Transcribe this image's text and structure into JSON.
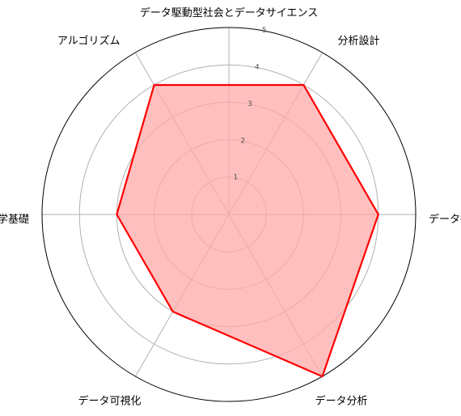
{
  "chart_data": {
    "type": "radar",
    "title": "データ駆動型社会とデータサイエンス",
    "categories": [
      "分析設計",
      "データ観察",
      "データ分析",
      "データ可視化",
      "数学基礎",
      "アルゴリズム"
    ],
    "values": [
      4,
      4,
      5,
      3,
      3,
      4
    ],
    "rlim": [
      0,
      5
    ],
    "r_ticks": [
      "1",
      "2",
      "3",
      "4",
      "5"
    ],
    "grid": true,
    "colors": {
      "line": "#ff0000",
      "fill": "#ffaaaa",
      "grid": "#b0b0b0",
      "frame": "#000000"
    }
  }
}
